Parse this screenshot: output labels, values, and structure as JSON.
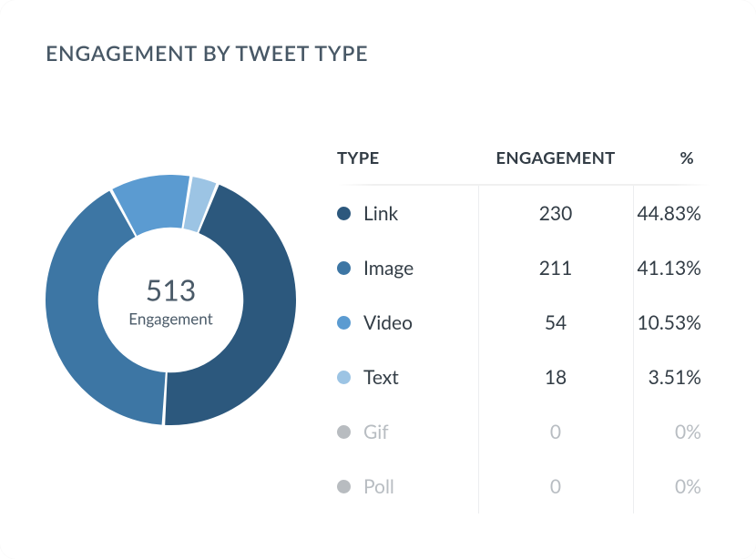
{
  "card": {
    "title": "ENGAGEMENT BY TWEET TYPE",
    "background_color": "#ffffff",
    "border_radius": 18
  },
  "donut_chart": {
    "type": "donut",
    "center_value": "513",
    "center_label": "Engagement",
    "size": 275,
    "inner_radius_ratio": 0.58,
    "gap_degrees": 1.5,
    "start_angle_deg": 22,
    "background_color": "#ffffff",
    "slices": [
      {
        "label": "Link",
        "value": 230,
        "percent": 44.83,
        "color": "#2c587d"
      },
      {
        "label": "Image",
        "value": 211,
        "percent": 41.13,
        "color": "#3d76a4"
      },
      {
        "label": "Video",
        "value": 54,
        "percent": 10.53,
        "color": "#5b9bd1"
      },
      {
        "label": "Text",
        "value": 18,
        "percent": 3.51,
        "color": "#9cc4e4"
      }
    ]
  },
  "table": {
    "columns": [
      "TYPE",
      "ENGAGEMENT",
      "%"
    ],
    "active_text_color": "#323c45",
    "inactive_text_color": "#b8bdc2",
    "inactive_dot_color": "#b8bcc0",
    "rows": [
      {
        "type": "Link",
        "engagement": "230",
        "percent": "44.83%",
        "dot_color": "#2c587d",
        "active": true
      },
      {
        "type": "Image",
        "engagement": "211",
        "percent": "41.13%",
        "dot_color": "#3d76a4",
        "active": true
      },
      {
        "type": "Video",
        "engagement": "54",
        "percent": "10.53%",
        "dot_color": "#5b9bd1",
        "active": true
      },
      {
        "type": "Text",
        "engagement": "18",
        "percent": "3.51%",
        "dot_color": "#9cc4e4",
        "active": true
      },
      {
        "type": "Gif",
        "engagement": "0",
        "percent": "0%",
        "dot_color": "#b8bcc0",
        "active": false
      },
      {
        "type": "Poll",
        "engagement": "0",
        "percent": "0%",
        "dot_color": "#b8bcc0",
        "active": false
      }
    ]
  }
}
